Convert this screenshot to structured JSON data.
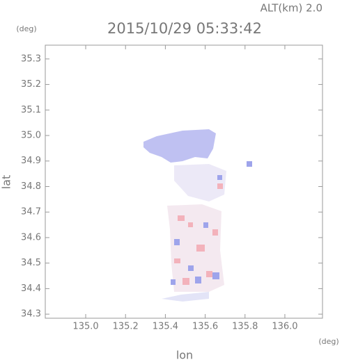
{
  "chart_data": {
    "type": "field",
    "title": "2015/10/29 05:33:42",
    "annotation": "ALT(km) 2.0",
    "x_label": "lon",
    "y_label": "lat",
    "x_unit": "(deg)",
    "y_unit": "(deg)",
    "xlim": [
      134.797,
      136.189
    ],
    "ylim": [
      34.284,
      35.354
    ],
    "xticks": [
      {
        "value": 135,
        "label": "135.0"
      },
      135.2,
      135.4,
      135.6,
      135.8,
      {
        "value": 136,
        "label": "136.0"
      }
    ],
    "yticks": [
      34.3,
      34.4,
      34.5,
      34.6,
      34.7,
      34.8,
      34.9,
      {
        "value": 35,
        "label": "35.0"
      },
      35.1,
      35.2,
      35.3
    ]
  }
}
